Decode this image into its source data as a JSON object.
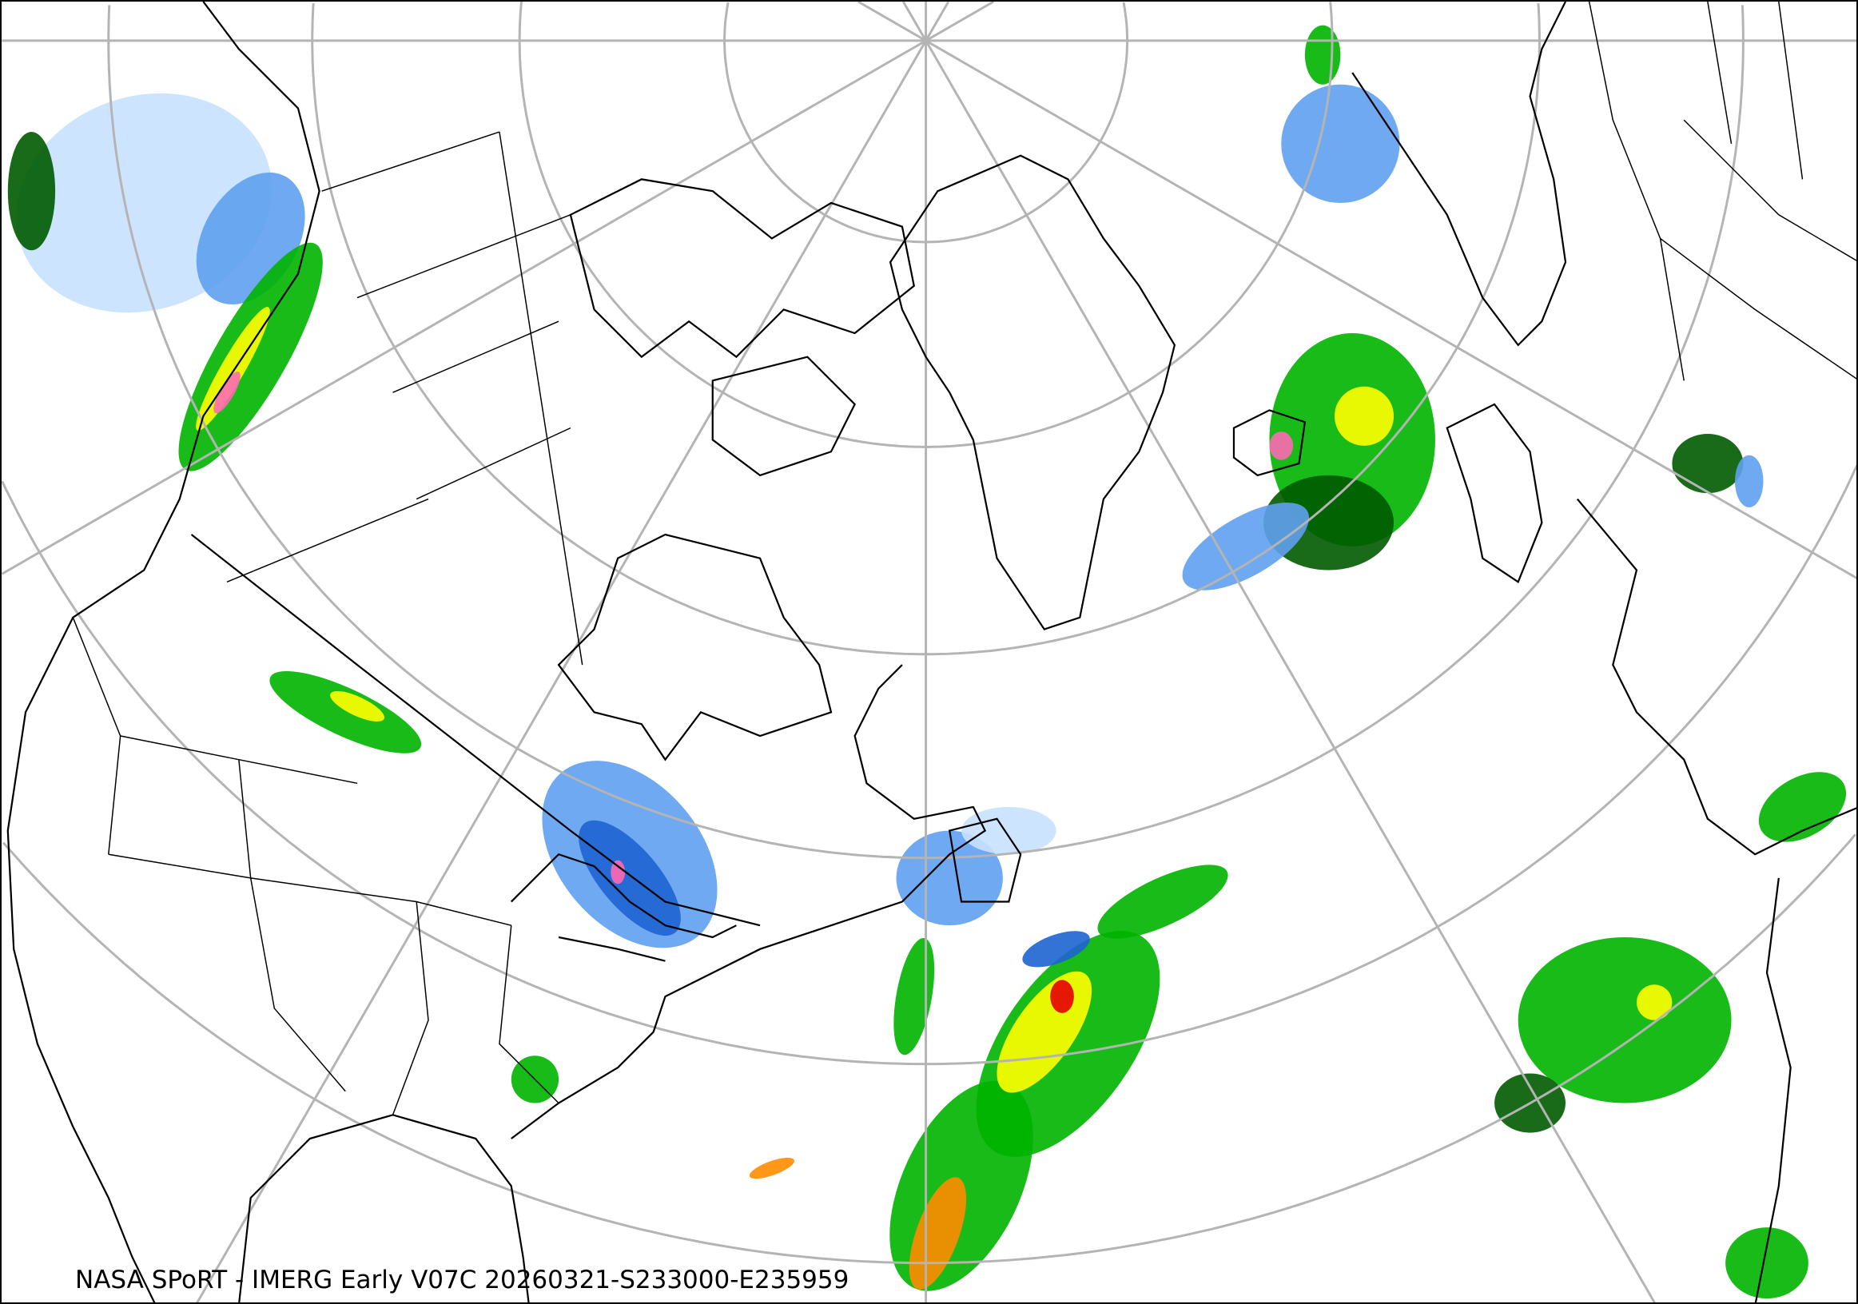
{
  "caption": "NASA SPoRT - IMERG Early V07C 20260321-S233000-E235959",
  "map": {
    "type": "polar stereographic precipitation map",
    "region": "North America, North Atlantic, Greenland, Europe",
    "graticule_color": "#b4b4b4",
    "boundary_color": "#000000",
    "precip_colors": {
      "snow_light": "#c8e1ff",
      "snow_moderate": "#5fa0f0",
      "snow_heavy": "#1e64d2",
      "rain_light": "#00b400",
      "rain_dark": "#005a00",
      "rain_moderate": "#7cfc00",
      "rain_heavy": "#ffff00",
      "rain_very_heavy": "#ff8c00",
      "rain_extreme": "#e60000",
      "mixed": "#ff69b4"
    }
  }
}
